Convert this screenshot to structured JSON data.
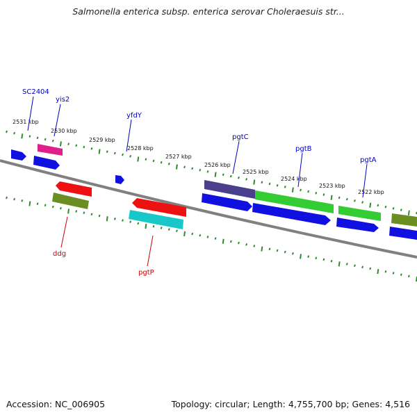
{
  "title": "Salmonella enterica subsp. enterica serovar Choleraesuis str...",
  "footer": {
    "accession": "Accession: NC_006905",
    "summary": "Topology: circular; Length: 4,755,700 bp; Genes: 4,516"
  },
  "colors": {
    "backbone": "#808080",
    "tick": "#2e8b2e",
    "forward_label": "#0000bb",
    "reverse_label": "#cc0000"
  },
  "scale_ticks": [
    "2531 kbp",
    "2530 kbp",
    "2529 kbp",
    "2528 kbp",
    "2527 kbp",
    "2526 kbp",
    "2525 kbp",
    "2524 kbp",
    "2523 kbp",
    "2522 kbp"
  ],
  "genes_labeled": [
    {
      "name": "SC2404",
      "strand": "forward"
    },
    {
      "name": "yis2",
      "strand": "forward"
    },
    {
      "name": "yfdY",
      "strand": "forward"
    },
    {
      "name": "pgtC",
      "strand": "forward"
    },
    {
      "name": "pgtB",
      "strand": "forward"
    },
    {
      "name": "pgtA",
      "strand": "forward"
    },
    {
      "name": "ddg",
      "strand": "reverse"
    },
    {
      "name": "pgtP",
      "strand": "reverse"
    }
  ],
  "feature_colors": {
    "cds": "#1010e0",
    "pink": "#e0208a",
    "red": "#ee1111",
    "olive": "#6b8e23",
    "cyan": "#18c8c8",
    "slate": "#4a3f8c",
    "green": "#33cc33"
  }
}
